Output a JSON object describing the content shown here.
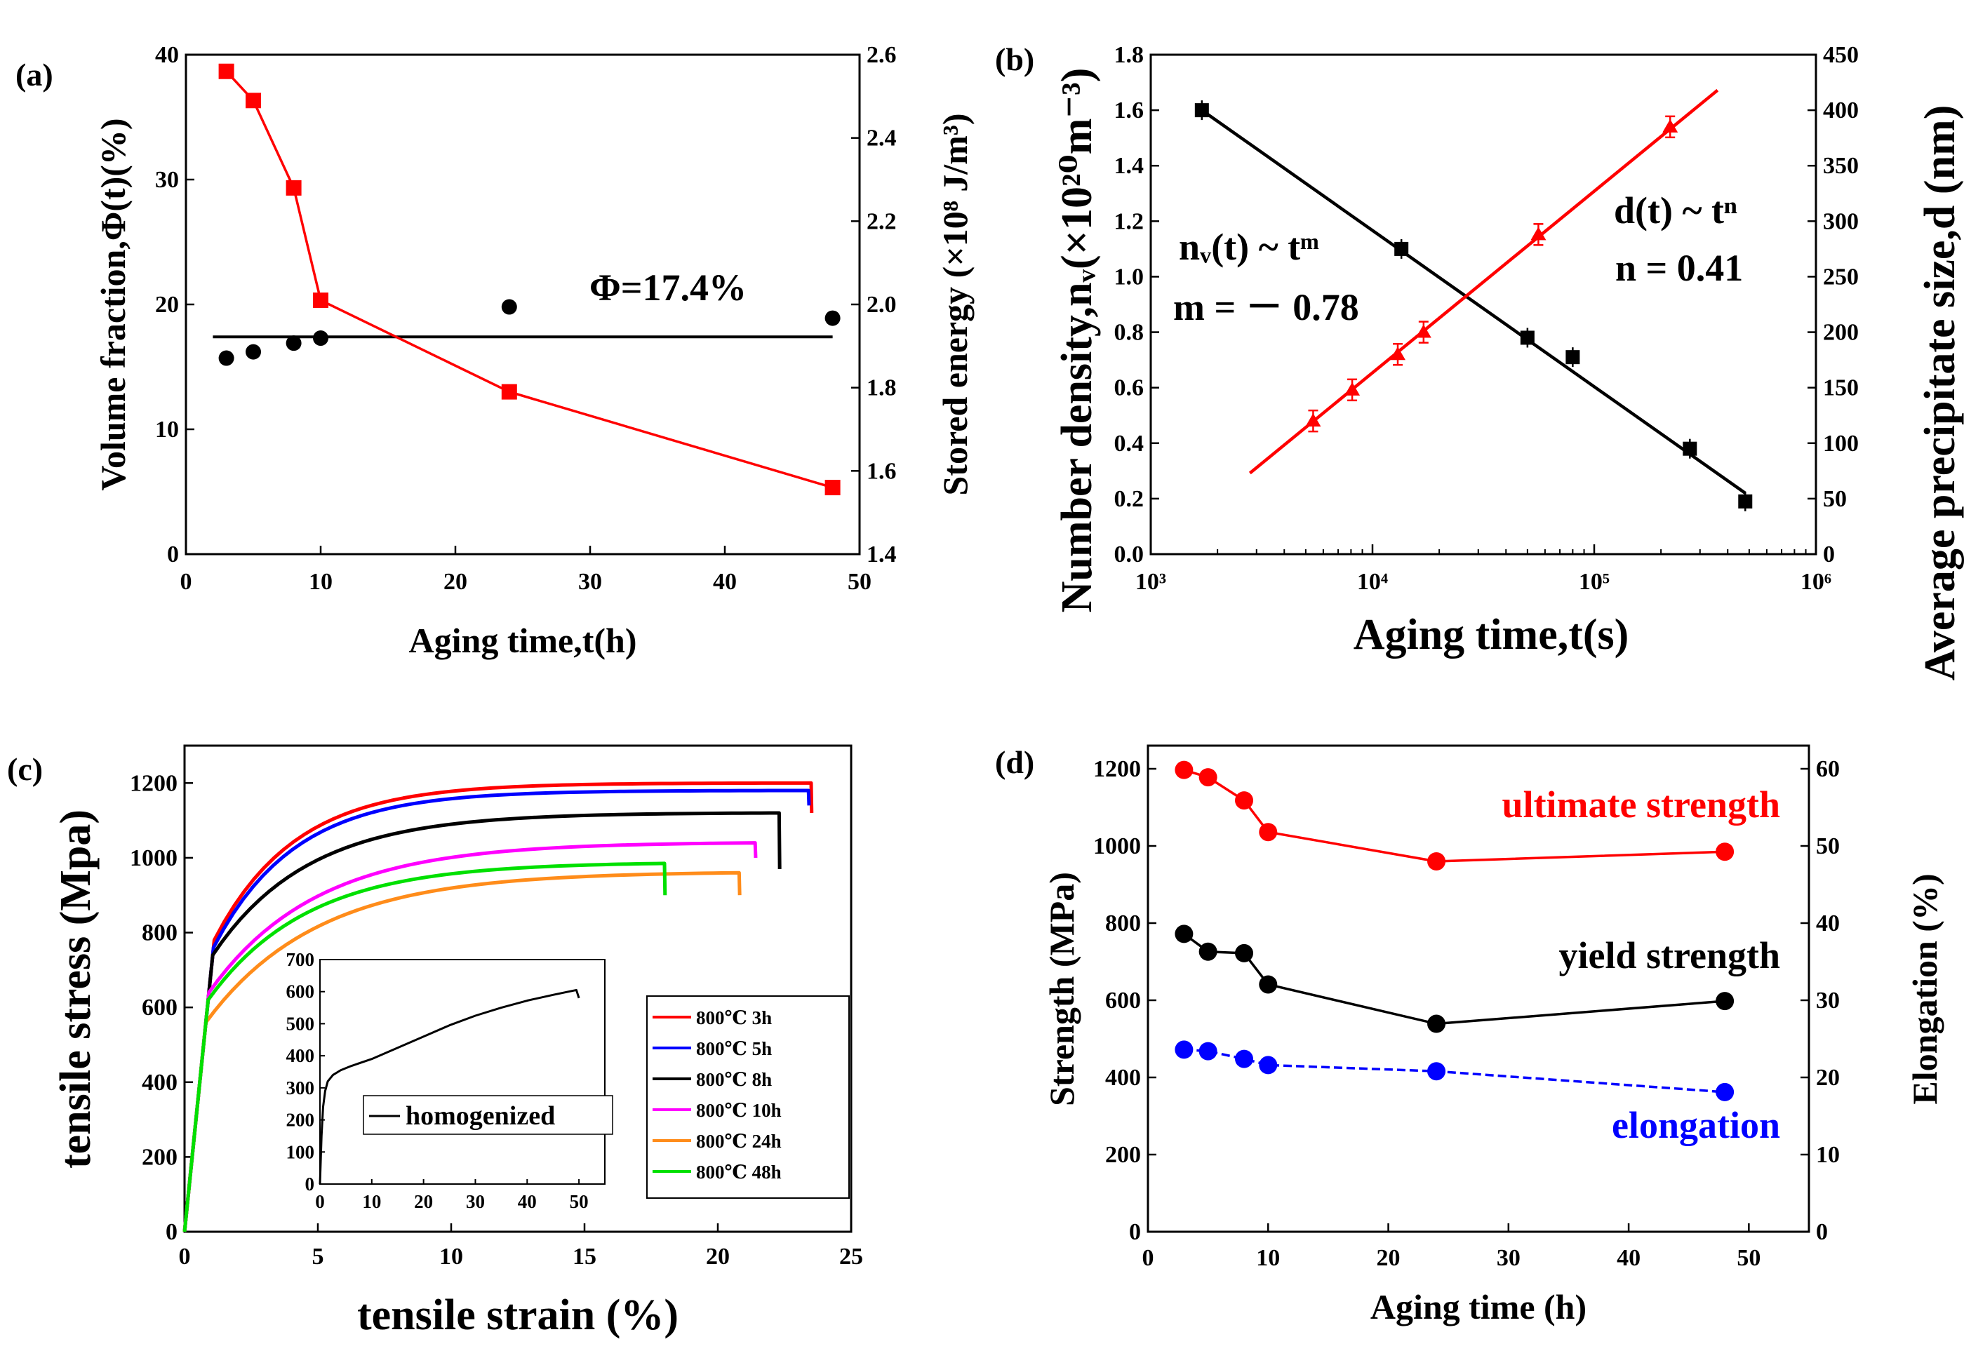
{
  "chart_data": [
    {
      "panel": "(a)",
      "type": "scatter",
      "xlabel": "Aging time,t(h)",
      "ylabel": "Volume fraction,Φ(t)(%)",
      "y2label": "Stored energy (×10⁸ J/m³)",
      "xlim": [
        0,
        50
      ],
      "ylim": [
        0,
        40
      ],
      "y2lim": [
        1.4,
        2.6
      ],
      "xticks": [
        "0",
        "10",
        "20",
        "30",
        "40",
        "50"
      ],
      "yticks": [
        "0",
        "10",
        "20",
        "30",
        "40"
      ],
      "y2ticks": [
        "1.4",
        "1.6",
        "1.8",
        "2.0",
        "2.2",
        "2.4",
        "2.6"
      ],
      "series": [
        {
          "name": "Volume fraction",
          "color": "#000000",
          "marker": "circle",
          "axis": "left",
          "x": [
            3,
            5,
            8,
            10,
            24,
            48
          ],
          "y": [
            15.7,
            16.2,
            16.9,
            17.3,
            19.8,
            18.9
          ]
        },
        {
          "name": "Stored energy",
          "color": "#ff0000",
          "marker": "square",
          "axis": "right",
          "x": [
            3,
            5,
            8,
            10,
            24,
            48
          ],
          "y": [
            2.56,
            2.49,
            2.28,
            2.01,
            1.79,
            1.56
          ]
        }
      ],
      "hline": {
        "y": 17.4,
        "x": [
          2,
          48
        ],
        "color": "#000000"
      },
      "annotation": "Φ=17.4%"
    },
    {
      "panel": "(b)",
      "type": "scatter",
      "xlabel": "Aging time,t(s)",
      "ylabel": "Number density,nᵥ(×10²⁰m⁻³)",
      "y2label": "Average precipitate size,d (nm)",
      "xscale": "log",
      "xlim": [
        1000,
        1000000
      ],
      "ylim": [
        0,
        1.8
      ],
      "y2lim": [
        0,
        450
      ],
      "xticks": [
        "10³",
        "10⁴",
        "10⁵",
        "10⁶"
      ],
      "yticks": [
        "0.0",
        "0.2",
        "0.4",
        "0.6",
        "0.8",
        "1.0",
        "1.2",
        "1.4",
        "1.6",
        "1.8"
      ],
      "y2ticks": [
        "0",
        "50",
        "100",
        "150",
        "200",
        "250",
        "300",
        "350",
        "400",
        "450"
      ],
      "series": [
        {
          "name": "Number density",
          "color": "#000000",
          "marker": "square",
          "axis": "left",
          "x": [
            1700,
            13500,
            50000,
            80000,
            270000,
            480000
          ],
          "y": [
            1.6,
            1.1,
            0.78,
            0.71,
            0.38,
            0.19
          ],
          "fit": {
            "x": [
              1700,
              480000
            ],
            "y": [
              1.6,
              0.22
            ]
          }
        },
        {
          "name": "Average precipitate size",
          "color": "#ff0000",
          "marker": "triangle",
          "axis": "right",
          "x": [
            5400,
            8100,
            13000,
            17000,
            56000,
            220000
          ],
          "y": [
            120,
            148,
            180,
            200,
            288,
            385
          ],
          "fit": {
            "x": [
              2800,
              360000
            ],
            "y": [
              73,
              418
            ]
          }
        }
      ],
      "annotations": {
        "left_fit": "nᵥ(t) ~ tᵐ",
        "left_exp": "m = － 0.78",
        "right_fit": "d(t) ~ tⁿ",
        "right_exp": "n = 0.41"
      }
    },
    {
      "panel": "(c)",
      "type": "line",
      "xlabel": "tensile strain (%)",
      "ylabel": "tensile stress (Mpa)",
      "xlim": [
        0,
        25
      ],
      "ylim": [
        0,
        1300
      ],
      "xticks": [
        "0",
        "5",
        "10",
        "15",
        "20",
        "25"
      ],
      "yticks": [
        "0",
        "200",
        "400",
        "600",
        "800",
        "1000",
        "1200"
      ],
      "series": [
        {
          "name": "800℃ 3h",
          "color": "#ff0000",
          "e": 23.5,
          "yield": 780,
          "uts": 1200,
          "k": 0.33,
          "break": 1120
        },
        {
          "name": "800℃ 5h",
          "color": "#0000ff",
          "e": 23.4,
          "yield": 760,
          "uts": 1180,
          "k": 0.33,
          "break": 1140
        },
        {
          "name": "800℃ 8h",
          "color": "#000000",
          "e": 22.3,
          "yield": 740,
          "uts": 1120,
          "k": 0.28,
          "break": 970
        },
        {
          "name": "800℃ 10h",
          "color": "#ff00ff",
          "e": 21.4,
          "yield": 640,
          "uts": 1040,
          "k": 0.25,
          "break": 1000
        },
        {
          "name": "800℃ 24h",
          "color": "#ff8c1a",
          "e": 20.8,
          "yield": 560,
          "uts": 960,
          "k": 0.24,
          "break": 900
        },
        {
          "name": "800℃ 48h",
          "color": "#00e000",
          "e": 18.0,
          "yield": 620,
          "uts": 985,
          "k": 0.27,
          "break": 900
        }
      ],
      "inset": {
        "xlim": [
          0,
          55
        ],
        "ylim": [
          0,
          700
        ],
        "xticks": [
          "0",
          "10",
          "20",
          "30",
          "40",
          "50"
        ],
        "yticks": [
          "0",
          "100",
          "200",
          "300",
          "400",
          "500",
          "600",
          "700"
        ],
        "legend": "homogenized",
        "series": {
          "name": "homogenized",
          "color": "#000000",
          "x": [
            0,
            0.3,
            0.6,
            1.0,
            1.5,
            2.5,
            4,
            6,
            10,
            15,
            20,
            25,
            30,
            35,
            40,
            45,
            48,
            49.5,
            50
          ],
          "y": [
            0,
            150,
            240,
            290,
            320,
            340,
            355,
            368,
            390,
            425,
            460,
            495,
            525,
            550,
            572,
            590,
            600,
            605,
            580
          ]
        }
      }
    },
    {
      "panel": "(d)",
      "type": "line",
      "xlabel": "Aging time (h)",
      "ylabel": "Strength (MPa)",
      "y2label": "Elongation (%)",
      "xlim": [
        0,
        55
      ],
      "ylim": [
        0,
        1200
      ],
      "y2lim": [
        0,
        60
      ],
      "xticks": [
        "0",
        "10",
        "20",
        "30",
        "40",
        "50"
      ],
      "yticks": [
        "0",
        "200",
        "400",
        "600",
        "800",
        "1000",
        "1200"
      ],
      "y2ticks": [
        "0",
        "10",
        "20",
        "30",
        "40",
        "50",
        "60"
      ],
      "series": [
        {
          "name": "ultimate strength",
          "color": "#ff0000",
          "axis": "left",
          "x": [
            3,
            5,
            8,
            10,
            24,
            48
          ],
          "y": [
            1197,
            1178,
            1118,
            1036,
            960,
            985
          ]
        },
        {
          "name": "yield strength",
          "color": "#000000",
          "axis": "left",
          "x": [
            3,
            5,
            8,
            10,
            24,
            48
          ],
          "y": [
            772,
            726,
            722,
            641,
            539,
            598
          ]
        },
        {
          "name": "elongation",
          "color": "#0000ff",
          "axis": "right",
          "x": [
            3,
            5,
            8,
            10,
            24,
            48
          ],
          "y": [
            23.6,
            23.4,
            22.4,
            21.6,
            20.8,
            18.1
          ]
        }
      ]
    }
  ]
}
